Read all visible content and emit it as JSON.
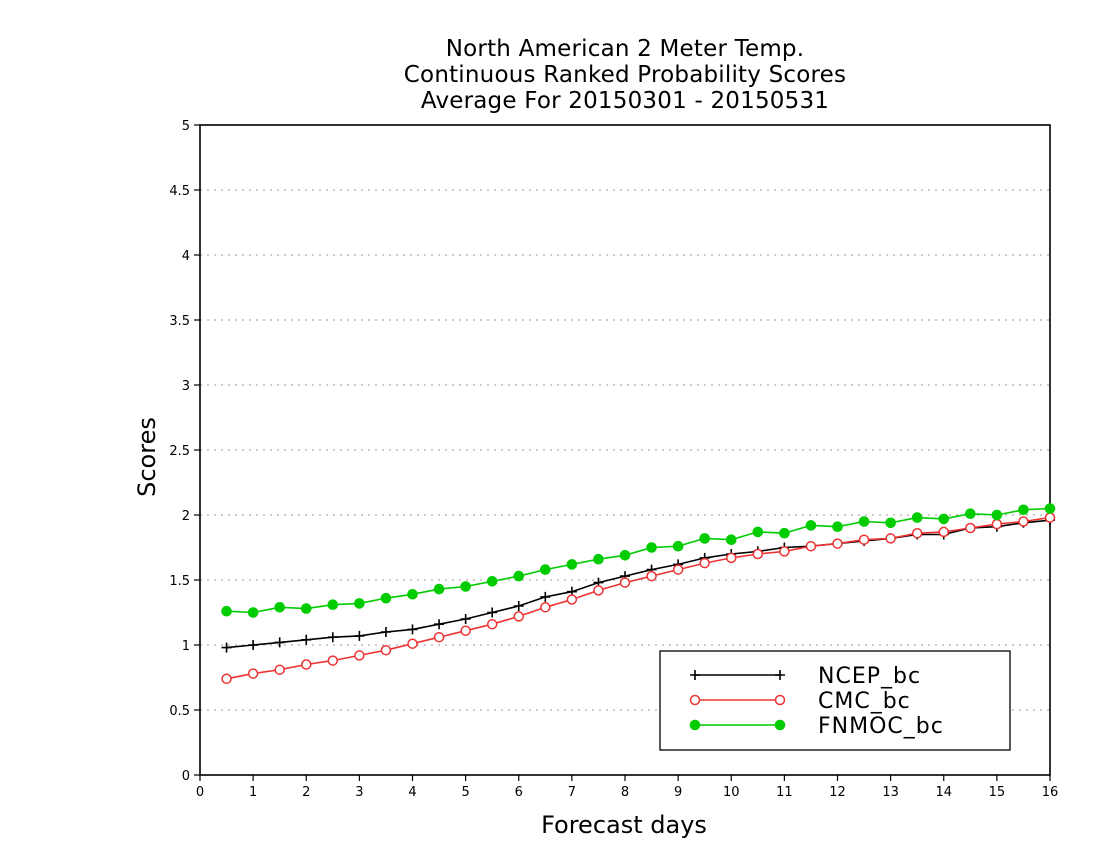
{
  "chart_data": {
    "type": "line",
    "title": [
      "North American 2 Meter Temp.",
      "Continuous Ranked Probability Scores",
      "Average For 20150301 - 20150531"
    ],
    "xlabel": "Forecast days",
    "ylabel": "Scores",
    "xlim": [
      0,
      16
    ],
    "ylim": [
      0,
      5
    ],
    "xticks": [
      "0",
      "1",
      "2",
      "3",
      "4",
      "5",
      "6",
      "7",
      "8",
      "9",
      "10",
      "11",
      "12",
      "13",
      "14",
      "15",
      "16"
    ],
    "yticks": [
      "0",
      "0.5",
      "1",
      "1.5",
      "2",
      "2.5",
      "3",
      "3.5",
      "4",
      "4.5",
      "5"
    ],
    "grid": "horizontal dotted",
    "legend_position": "bottom-right",
    "x": [
      0.5,
      1,
      1.5,
      2,
      2.5,
      3,
      3.5,
      4,
      4.5,
      5,
      5.5,
      6,
      6.5,
      7,
      7.5,
      8,
      8.5,
      9,
      9.5,
      10,
      10.5,
      11,
      11.5,
      12,
      12.5,
      13,
      13.5,
      14,
      14.5,
      15,
      15.5,
      16
    ],
    "series": [
      {
        "name": "NCEP_bc",
        "color": "#000000",
        "marker": "plus",
        "values": [
          0.98,
          1.0,
          1.02,
          1.04,
          1.06,
          1.07,
          1.1,
          1.12,
          1.16,
          1.2,
          1.25,
          1.3,
          1.37,
          1.41,
          1.48,
          1.53,
          1.58,
          1.62,
          1.67,
          1.7,
          1.72,
          1.75,
          1.76,
          1.78,
          1.8,
          1.82,
          1.85,
          1.85,
          1.9,
          1.91,
          1.94,
          1.96
        ]
      },
      {
        "name": "CMC_bc",
        "color": "#ee3333",
        "marker": "open-circle",
        "values": [
          0.74,
          0.78,
          0.81,
          0.85,
          0.88,
          0.92,
          0.96,
          1.01,
          1.06,
          1.11,
          1.16,
          1.22,
          1.29,
          1.35,
          1.42,
          1.48,
          1.53,
          1.58,
          1.63,
          1.67,
          1.7,
          1.72,
          1.76,
          1.78,
          1.81,
          1.82,
          1.86,
          1.87,
          1.9,
          1.93,
          1.95,
          1.98
        ]
      },
      {
        "name": "FNMOC_bc",
        "color": "#00cc00",
        "marker": "filled-circle",
        "values": [
          1.26,
          1.25,
          1.29,
          1.28,
          1.31,
          1.32,
          1.36,
          1.39,
          1.43,
          1.45,
          1.49,
          1.53,
          1.58,
          1.62,
          1.66,
          1.69,
          1.75,
          1.76,
          1.82,
          1.81,
          1.87,
          1.86,
          1.92,
          1.91,
          1.95,
          1.94,
          1.98,
          1.97,
          2.01,
          2.0,
          2.04,
          2.05
        ]
      }
    ]
  }
}
